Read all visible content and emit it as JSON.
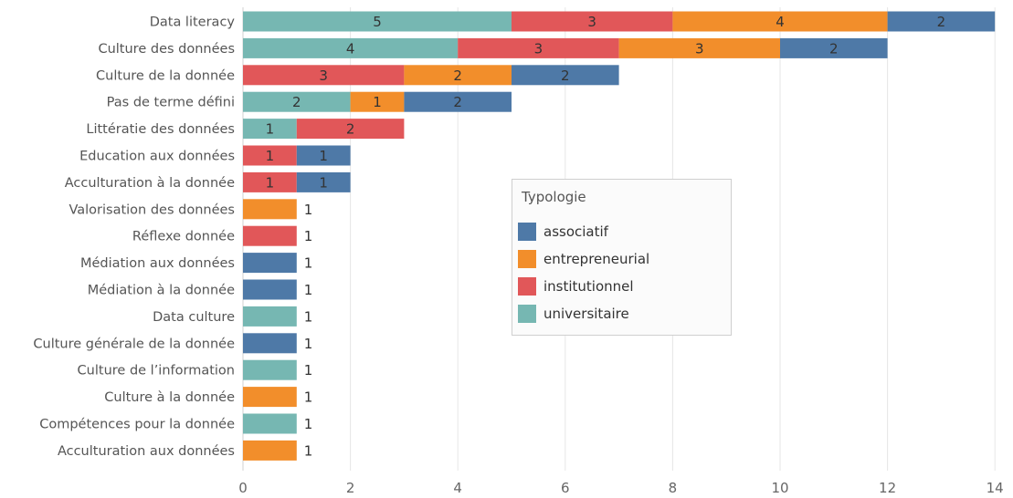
{
  "chart_data": {
    "type": "bar",
    "orientation": "horizontal",
    "stacked": true,
    "categories": [
      "Data literacy",
      "Culture des données",
      "Culture de la donnée",
      "Pas de terme défini",
      "Littératie des données",
      "Education aux données",
      "Acculturation à la donnée",
      "Valorisation des données",
      "Réflexe donnée",
      "Médiation aux données",
      "Médiation à la donnée",
      "Data culture",
      "Culture générale de la donnée",
      "Culture de l’information",
      "Culture à la donnée",
      "Compétences pour la donnée",
      "Acculturation aux données"
    ],
    "series": [
      {
        "name": "universitaire",
        "color": "#76b7b2",
        "values": [
          5,
          4,
          0,
          2,
          1,
          0,
          0,
          0,
          0,
          0,
          0,
          1,
          0,
          1,
          0,
          1,
          0
        ]
      },
      {
        "name": "institutionnel",
        "color": "#e15759",
        "values": [
          3,
          3,
          3,
          0,
          2,
          1,
          1,
          0,
          1,
          0,
          0,
          0,
          0,
          0,
          0,
          0,
          0
        ]
      },
      {
        "name": "entrepreneurial",
        "color": "#f28e2b",
        "values": [
          4,
          3,
          2,
          1,
          0,
          0,
          0,
          1,
          0,
          0,
          0,
          0,
          0,
          0,
          1,
          0,
          1
        ]
      },
      {
        "name": "associatif",
        "color": "#4e79a7",
        "values": [
          2,
          2,
          2,
          2,
          0,
          1,
          1,
          0,
          0,
          1,
          1,
          0,
          1,
          0,
          0,
          0,
          0
        ]
      }
    ],
    "xlim": [
      0,
      14
    ],
    "x_ticks": [
      "0",
      "2",
      "4",
      "6",
      "8",
      "10",
      "12",
      "14"
    ],
    "grid": "vertical",
    "legend": {
      "title": "Typologie",
      "placement": "center",
      "items": [
        {
          "label": "associatif",
          "color": "#4e79a7"
        },
        {
          "label": "entrepreneurial",
          "color": "#f28e2b"
        },
        {
          "label": "institutionnel",
          "color": "#e15759"
        },
        {
          "label": "universitaire",
          "color": "#76b7b2"
        }
      ]
    }
  }
}
